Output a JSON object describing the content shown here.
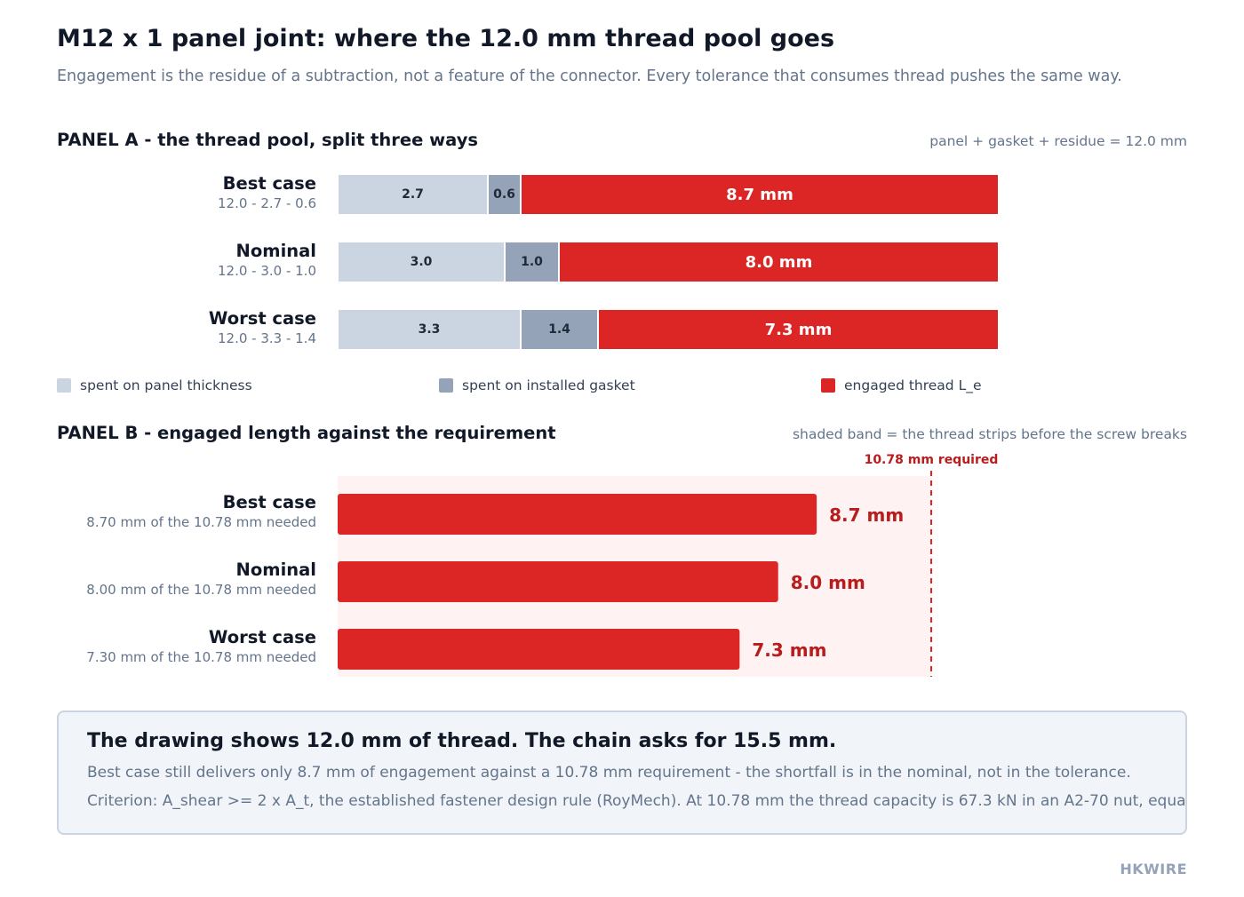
{
  "header": {
    "title": "M12 x 1 panel joint: where the 12.0 mm thread pool goes",
    "subtitle": "Engagement is the residue of a subtraction, not a feature of the connector. Every tolerance that consumes thread pushes the same way."
  },
  "panel_a": {
    "title": "PANEL A - the thread pool, split three ways",
    "note": "panel + gasket + residue = 12.0 mm",
    "legend": [
      {
        "label": "spent on panel thickness",
        "color": "#cbd5e1"
      },
      {
        "label": "spent on installed gasket",
        "color": "#94a3b8"
      },
      {
        "label": "engaged thread L_e",
        "color": "#dc2626"
      }
    ]
  },
  "panel_b": {
    "title": "PANEL B - engaged length against the requirement",
    "note": "shaded band = the thread strips before the screw breaks",
    "requirement_label": "10.78 mm required"
  },
  "callout": {
    "heading": "The drawing shows 12.0 mm of thread. The chain asks for 15.5 mm.",
    "line1": "Best case still delivers only 8.7 mm of engagement against a 10.78 mm requirement - the shortfall is in the nominal, not in the tolerance.",
    "line2": "Criterion: A_shear >= 2 x A_t, the established fastener design rule (RoyMech). At 10.78 mm the thread capacity is 67.3 kN in an A2-70 nut, equal to the screw"
  },
  "brand": "HKWIRE",
  "chart_data": [
    {
      "type": "bar",
      "stacked": true,
      "orientation": "horizontal",
      "title": "PANEL A - the thread pool, split three ways",
      "categories": [
        "Best case",
        "Nominal",
        "Worst case"
      ],
      "category_notes": [
        "12.0 - 2.7 - 0.6",
        "12.0 - 3.0 - 1.0",
        "12.0 - 3.3 - 1.4"
      ],
      "total": 12.0,
      "series": [
        {
          "name": "spent on panel thickness",
          "values": [
            2.7,
            3.0,
            3.3
          ],
          "labels": [
            "2.7",
            "3.0",
            "3.3"
          ],
          "color": "#cbd5e1"
        },
        {
          "name": "spent on installed gasket",
          "values": [
            0.6,
            1.0,
            1.4
          ],
          "labels": [
            "0.6",
            "1.0",
            "1.4"
          ],
          "color": "#94a3b8"
        },
        {
          "name": "engaged thread L_e",
          "values": [
            8.7,
            8.0,
            7.3
          ],
          "labels": [
            "8.7 mm",
            "8.0 mm",
            "7.3 mm"
          ],
          "color": "#dc2626"
        }
      ],
      "legend": "bottom"
    },
    {
      "type": "bar",
      "orientation": "horizontal",
      "title": "PANEL B - engaged length against the requirement",
      "categories": [
        "Best case",
        "Nominal",
        "Worst case"
      ],
      "category_notes": [
        "8.70 mm of the 10.78 mm needed",
        "8.00 mm of the 10.78 mm needed",
        "7.30 mm of the 10.78 mm needed"
      ],
      "values": [
        8.7,
        8.0,
        7.3
      ],
      "labels": [
        "8.7 mm",
        "8.0 mm",
        "7.3 mm"
      ],
      "color": "#dc2626",
      "reference_line": {
        "value": 10.78,
        "label": "10.78 mm required"
      },
      "shaded_band": [
        0,
        10.78
      ],
      "xlim": [
        0,
        10.78
      ]
    }
  ]
}
